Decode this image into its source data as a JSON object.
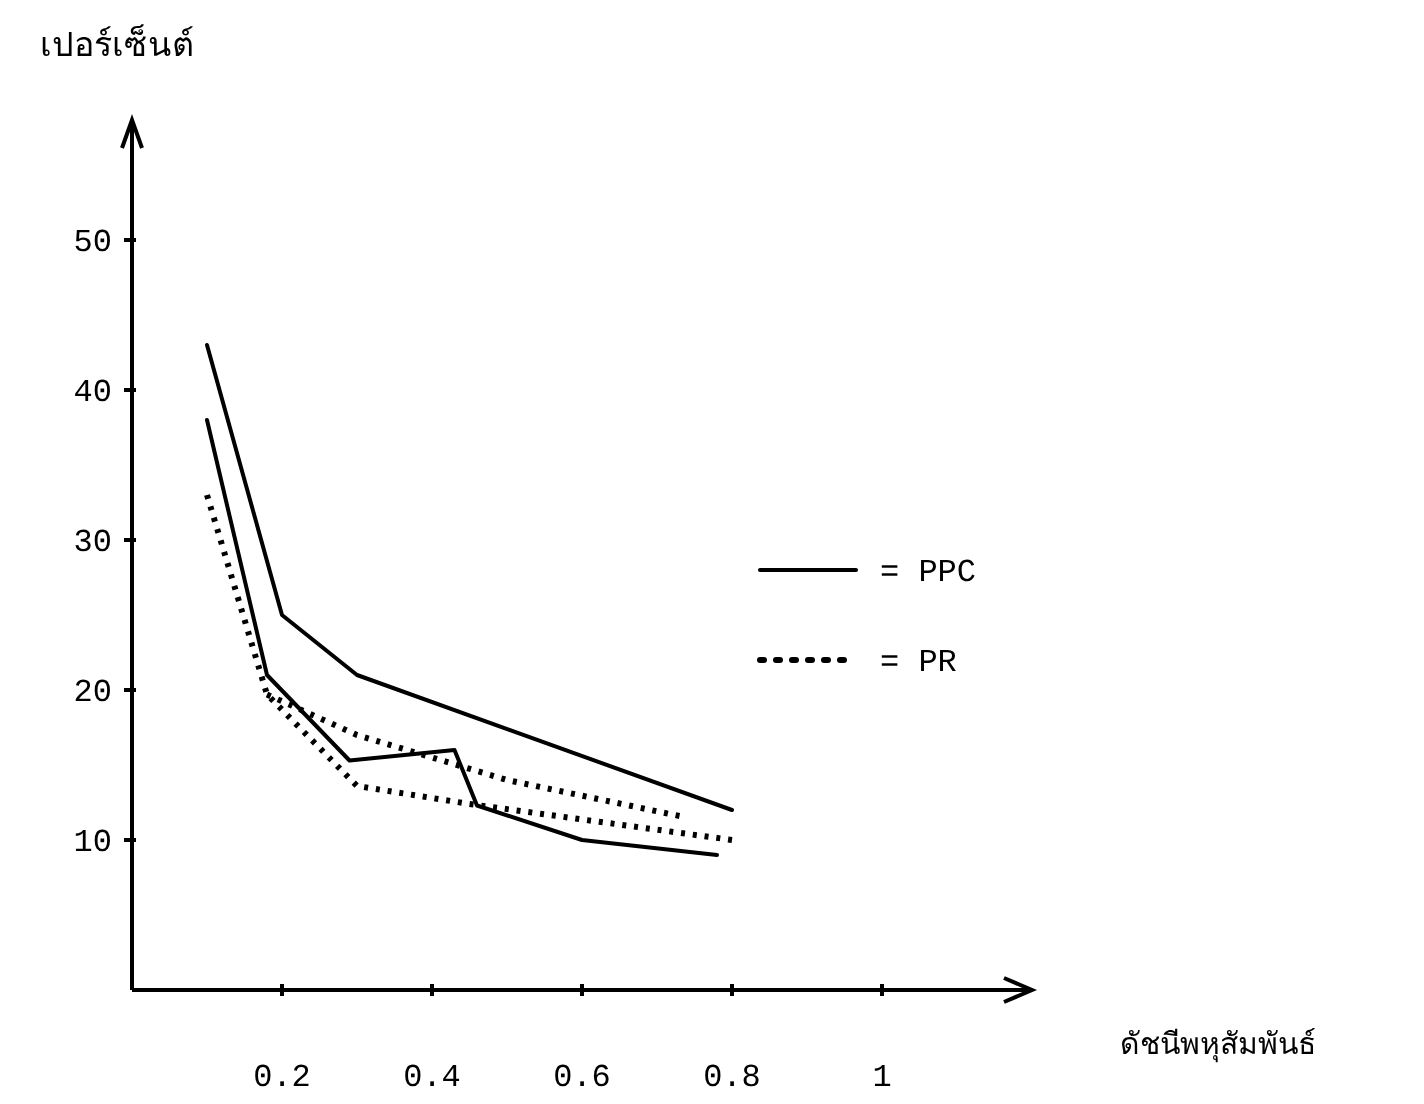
{
  "chart_data": {
    "type": "line",
    "xlabel": "ดัชนีพหุสัมพันธ์",
    "ylabel": "เปอร์เซ็นต์",
    "xlim": [
      0,
      1.2
    ],
    "ylim": [
      0,
      58
    ],
    "xticks": [
      0.2,
      0.4,
      0.6,
      0.8,
      1
    ],
    "yticks": [
      10,
      20,
      30,
      40,
      50
    ],
    "grid": false,
    "legend": "right",
    "marker": "none",
    "series": [
      {
        "name": "= PPC",
        "color": "#000000",
        "line_style": "solid",
        "x": [
          0.1,
          0.2,
          0.3,
          0.8
        ],
        "values": [
          43,
          25,
          21,
          12
        ]
      },
      {
        "color": "#000000",
        "line_style": "solid",
        "x": [
          0.1,
          0.18,
          0.29,
          0.43,
          0.46,
          0.6,
          0.78
        ],
        "values": [
          38,
          21,
          15.3,
          16,
          12.3,
          10,
          9
        ]
      },
      {
        "name": "= PR",
        "color": "#000000",
        "line_style": "dotted",
        "x": [
          0.1,
          0.18,
          0.3,
          0.45,
          0.8
        ],
        "values": [
          33,
          19.7,
          13.6,
          12.4,
          10
        ]
      },
      {
        "color": "#000000",
        "line_style": "dotted",
        "x": [
          0.18,
          0.3,
          0.5,
          0.73
        ],
        "values": [
          19.7,
          17,
          14,
          11.6
        ]
      }
    ]
  }
}
